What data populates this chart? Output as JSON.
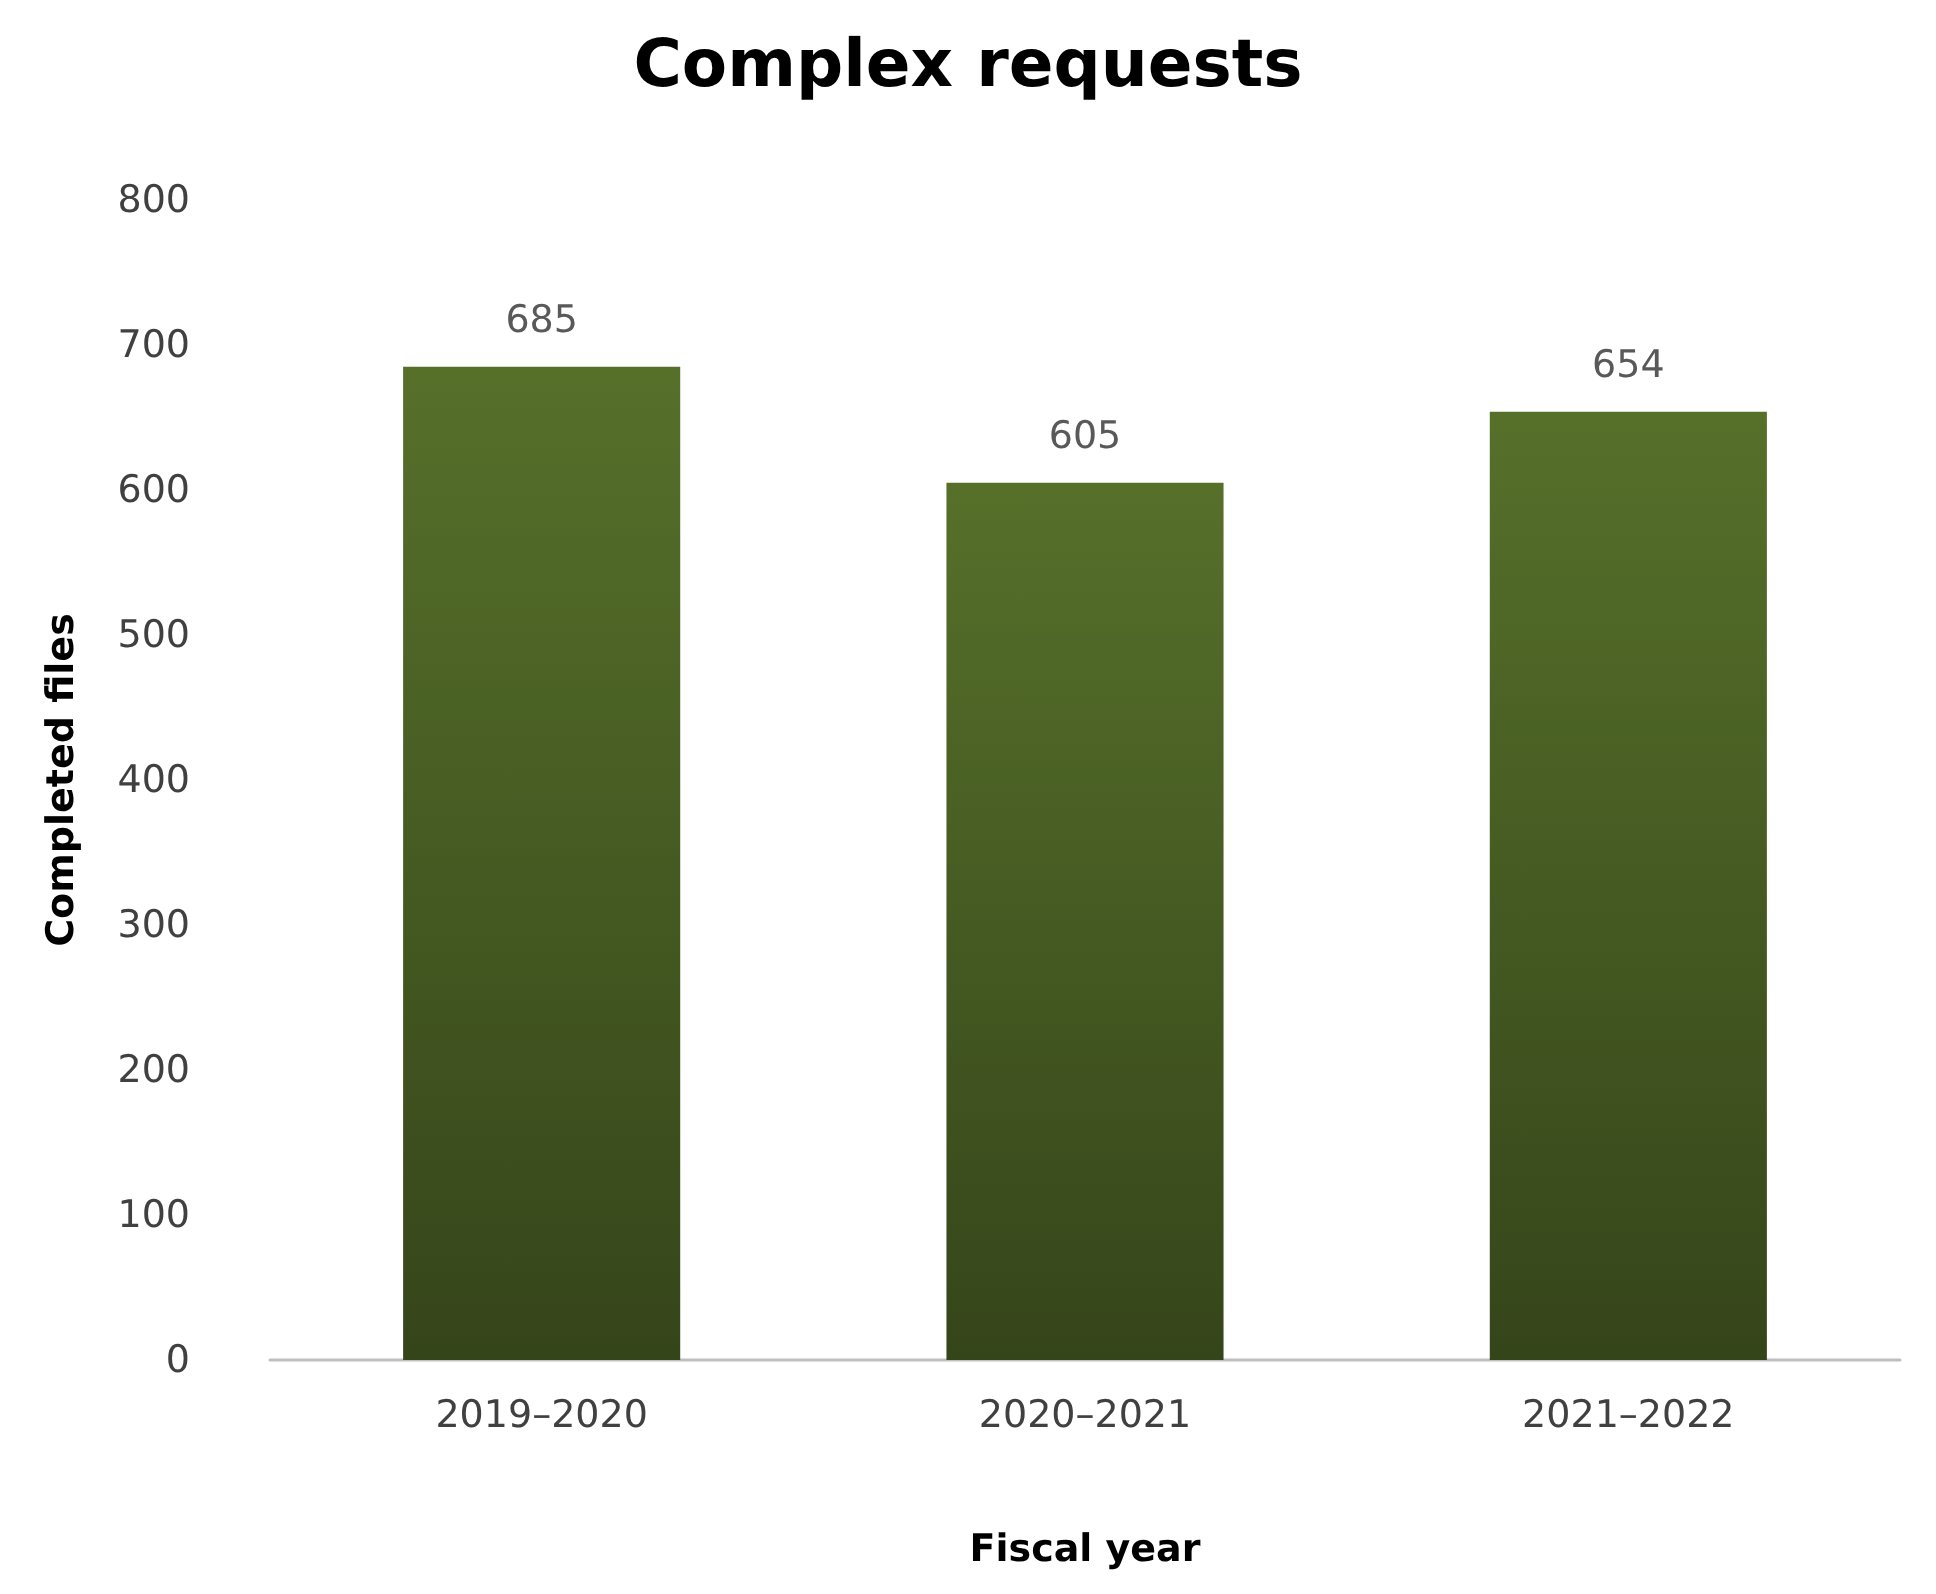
{
  "chart_data": {
    "type": "bar",
    "title": "Complex requests",
    "xlabel": "Fiscal year",
    "ylabel": "Completed files",
    "categories": [
      "2019–2020",
      "2020–2021",
      "2021–2022"
    ],
    "values": [
      685,
      605,
      654
    ],
    "color": "#56702a",
    "ylim": [
      0,
      800
    ],
    "yticks": [
      0,
      100,
      200,
      300,
      400,
      500,
      600,
      700,
      800
    ],
    "grid": false,
    "data_labels": true
  }
}
